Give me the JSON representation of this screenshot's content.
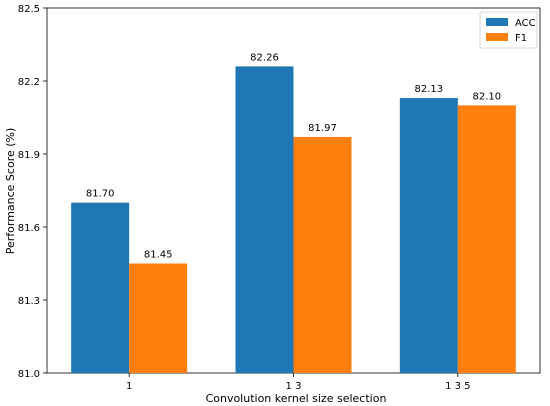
{
  "chart_data": {
    "type": "bar",
    "title": "",
    "xlabel": "Convolution kernel size selection",
    "ylabel": "Performance Score (%)",
    "categories": [
      "1",
      "1 3",
      "1 3 5"
    ],
    "ylim": [
      81.0,
      82.5
    ],
    "yticks": [
      "81.0",
      "81.3",
      "81.6",
      "81.9",
      "82.2",
      "82.5"
    ],
    "grid": false,
    "legend_position": "top-right",
    "series": [
      {
        "name": "ACC",
        "color": "#1f77b4",
        "values": [
          81.7,
          82.26,
          82.13
        ],
        "labels": [
          "81.70",
          "82.26",
          "82.13"
        ]
      },
      {
        "name": "F1",
        "color": "#ff7f0e",
        "values": [
          81.45,
          81.97,
          82.1
        ],
        "labels": [
          "81.45",
          "81.97",
          "82.10"
        ]
      }
    ]
  }
}
